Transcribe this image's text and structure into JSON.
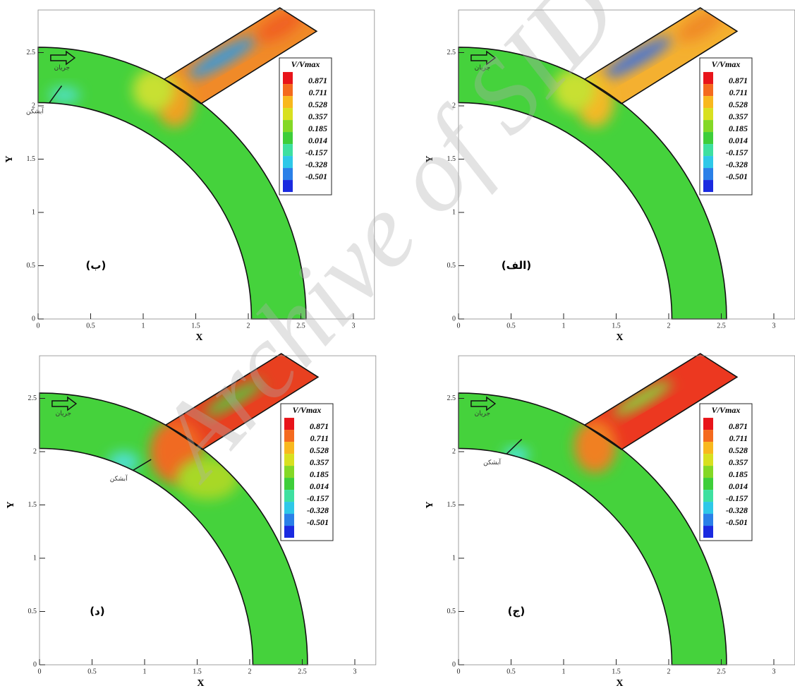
{
  "chart_data": [
    {
      "type": "contour",
      "panel_label": "(ب)",
      "xlabel": "X",
      "ylabel": "Y",
      "xlim": [
        0,
        3.2
      ],
      "ylim": [
        0,
        2.9
      ],
      "xticks": [
        0,
        0.5,
        1,
        1.5,
        2,
        2.5,
        3
      ],
      "yticks": [
        0,
        0.5,
        1,
        1.5,
        2,
        2.5
      ],
      "flow_label": "جریان",
      "groyne_label": "آبشکن",
      "colorbar": {
        "title": "V/Vmax",
        "levels": [
          0.871,
          0.711,
          0.528,
          0.357,
          0.185,
          0.014,
          -0.157,
          -0.328,
          -0.501
        ],
        "colors": [
          "#e8141a",
          "#f46a1e",
          "#f8b81e",
          "#d8e020",
          "#84d826",
          "#3ece3a",
          "#3ee0a0",
          "#2ec8e8",
          "#2a80e8",
          "#1a2ae0"
        ]
      }
    },
    {
      "type": "contour",
      "panel_label": "(الف)",
      "xlabel": "X",
      "ylabel": "Y",
      "xlim": [
        0,
        3.2
      ],
      "ylim": [
        0,
        2.9
      ],
      "xticks": [
        0,
        0.5,
        1,
        1.5,
        2,
        2.5,
        3
      ],
      "yticks": [
        0,
        0.5,
        1,
        1.5,
        2,
        2.5
      ],
      "flow_label": "جریان",
      "colorbar": {
        "title": "V/Vmax",
        "levels": [
          0.871,
          0.711,
          0.528,
          0.357,
          0.185,
          0.014,
          -0.157,
          -0.328,
          -0.501
        ],
        "colors": [
          "#e8141a",
          "#f46a1e",
          "#f8b81e",
          "#d8e020",
          "#84d826",
          "#3ece3a",
          "#3ee0a0",
          "#2ec8e8",
          "#2a80e8",
          "#1a2ae0"
        ]
      }
    },
    {
      "type": "contour",
      "panel_label": "(د)",
      "xlabel": "X",
      "ylabel": "Y",
      "xlim": [
        0,
        3.2
      ],
      "ylim": [
        0,
        2.9
      ],
      "xticks": [
        0,
        0.5,
        1,
        1.5,
        2,
        2.5,
        3
      ],
      "yticks": [
        0,
        0.5,
        1,
        1.5,
        2,
        2.5
      ],
      "flow_label": "جریان",
      "groyne_label": "آبشکن",
      "colorbar": {
        "title": "V/Vmax",
        "levels": [
          0.871,
          0.711,
          0.528,
          0.357,
          0.185,
          0.014,
          -0.157,
          -0.328,
          -0.501
        ],
        "colors": [
          "#e8141a",
          "#f46a1e",
          "#f8b81e",
          "#d8e020",
          "#84d826",
          "#3ece3a",
          "#3ee0a0",
          "#2ec8e8",
          "#2a80e8",
          "#1a2ae0"
        ]
      }
    },
    {
      "type": "contour",
      "panel_label": "(ج)",
      "xlabel": "X",
      "ylabel": "Y",
      "xlim": [
        0,
        3.2
      ],
      "ylim": [
        0,
        2.9
      ],
      "xticks": [
        0,
        0.5,
        1,
        1.5,
        2,
        2.5,
        3
      ],
      "yticks": [
        0,
        0.5,
        1,
        1.5,
        2,
        2.5
      ],
      "flow_label": "جریان",
      "groyne_label": "آبشکن",
      "colorbar": {
        "title": "V/Vmax",
        "levels": [
          0.871,
          0.711,
          0.528,
          0.357,
          0.185,
          0.014,
          -0.157,
          -0.328,
          -0.501
        ],
        "colors": [
          "#e8141a",
          "#f46a1e",
          "#f8b81e",
          "#d8e020",
          "#84d826",
          "#3ece3a",
          "#3ee0a0",
          "#2ec8e8",
          "#2a80e8",
          "#1a2ae0"
        ]
      }
    }
  ],
  "watermark": "Archive of SID"
}
